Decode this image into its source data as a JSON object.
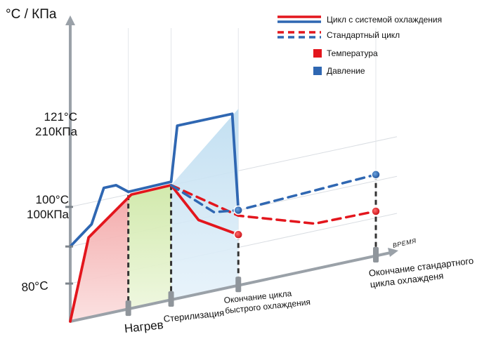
{
  "chart_data": {
    "type": "line",
    "axis_unit_label": "°C / КПа",
    "xlabel": "ВРЕМЯ",
    "y_ticks": [
      {
        "line1": "121°C",
        "line2": "210КПа"
      },
      {
        "line1": "100°C",
        "line2": "100КПа"
      },
      {
        "line1": "80°C",
        "line2": ""
      }
    ],
    "x_markers": [
      {
        "label": "Нагрев"
      },
      {
        "label": "Стерилизация"
      },
      {
        "label": "Окончание цикла\nбыстрого охлаждения"
      },
      {
        "label": "Окончание стандартного\nцикла охлажденя"
      }
    ],
    "phases": [
      "heating",
      "sterilization",
      "cooling"
    ],
    "legend": {
      "line_items": [
        "Цикл с системой охлаждения",
        "Стандартный цикл"
      ],
      "marker_items": [
        "Температура",
        "Давление"
      ]
    },
    "series": [
      {
        "name": "Температура",
        "variant": "Цикл с системой охлаждения",
        "color": "#e3161d",
        "points": [
          {
            "t": 0,
            "v": 0
          },
          {
            "t": 0.06,
            "v": 1.9
          },
          {
            "t": 0.2,
            "v": 2.7
          },
          {
            "t": 0.33,
            "v": 2.72
          },
          {
            "t": 0.42,
            "v": 1.75
          },
          {
            "t": 0.55,
            "v": 1.2
          }
        ]
      },
      {
        "name": "Давление",
        "variant": "Цикл с системой охлаждения",
        "color": "#2f67b2",
        "points": [
          {
            "t": 0,
            "v": 1.78
          },
          {
            "t": 0.07,
            "v": 2.2
          },
          {
            "t": 0.11,
            "v": 3.0
          },
          {
            "t": 0.15,
            "v": 3.0
          },
          {
            "t": 0.19,
            "v": 2.78
          },
          {
            "t": 0.33,
            "v": 2.8
          },
          {
            "t": 0.35,
            "v": 4.1
          },
          {
            "t": 0.53,
            "v": 4.1
          },
          {
            "t": 0.55,
            "v": 1.78
          }
        ]
      },
      {
        "name": "Температура",
        "variant": "Стандартный цикл",
        "color": "#e3161d",
        "points": [
          {
            "t": 0.33,
            "v": 2.72
          },
          {
            "t": 0.55,
            "v": 1.65
          },
          {
            "t": 0.8,
            "v": 1.07
          },
          {
            "t": 1.0,
            "v": 1.05
          }
        ]
      },
      {
        "name": "Давление",
        "variant": "Стандартный цикл",
        "color": "#2f67b2",
        "points": [
          {
            "t": 0.33,
            "v": 2.72
          },
          {
            "t": 0.47,
            "v": 1.86
          },
          {
            "t": 0.55,
            "v": 1.78
          },
          {
            "t": 1.0,
            "v": 1.92
          }
        ]
      }
    ],
    "point_markers": [
      "end-fast-temperature",
      "end-fast-pressure",
      "end-standard-temperature",
      "end-standard-pressure"
    ]
  }
}
